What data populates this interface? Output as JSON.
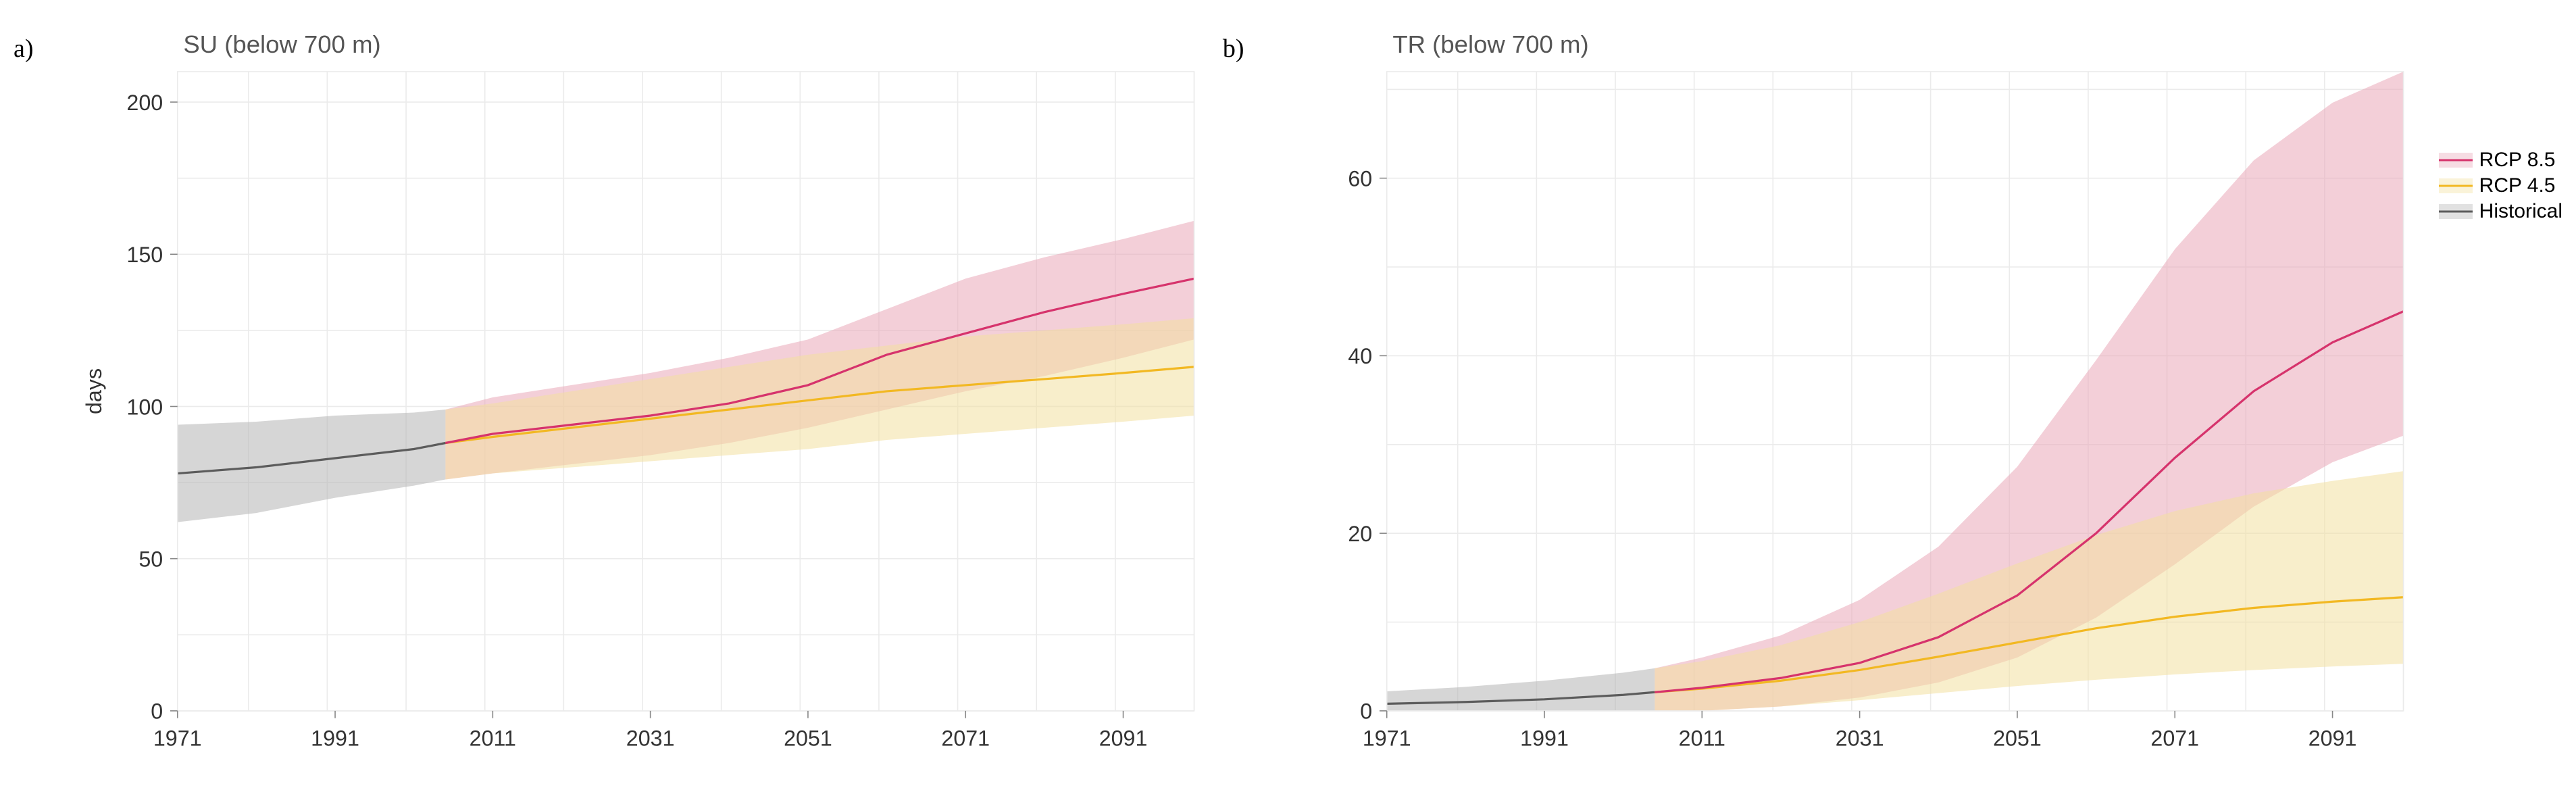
{
  "background_color": "#ffffff",
  "plot_background": "#ffffff",
  "grid_color": "#ebebeb",
  "axis_text_color": "#333333",
  "title_color": "#555555",
  "font_family": "Arial, Helvetica, sans-serif",
  "title_fontsize": 34,
  "tick_fontsize": 30,
  "axis_label_fontsize": 30,
  "panel_label_fontsize": 38,
  "line_width": 3,
  "series_colors": {
    "historical_line": "#5c5c5c",
    "historical_band": "#b5b5b5",
    "rcp45_line": "#f2b822",
    "rcp45_band": "#f3e0a0",
    "rcp85_line": "#d6336c",
    "rcp85_band": "#e9a8b8"
  },
  "band_opacity": 0.55,
  "legend": {
    "items": [
      {
        "key": "rcp85",
        "label": "RCP 8.5"
      },
      {
        "key": "rcp45",
        "label": "RCP 4.5"
      },
      {
        "key": "historical",
        "label": "Historical"
      }
    ]
  },
  "panels": {
    "a": {
      "label": "a)",
      "title": "SU (below 700 m)",
      "ylabel": "days",
      "xlim": [
        1971,
        2100
      ],
      "ylim": [
        0,
        210
      ],
      "xticks": [
        1971,
        1991,
        2011,
        2031,
        2051,
        2071,
        2091
      ],
      "yticks": [
        0,
        50,
        100,
        150,
        200
      ],
      "xgrid_step": 10,
      "ygrid_step": 25,
      "series": {
        "historical": {
          "x": [
            1971,
            1981,
            1991,
            2001,
            2005
          ],
          "mean": [
            78,
            80,
            83,
            86,
            88
          ],
          "lo": [
            62,
            65,
            70,
            74,
            76
          ],
          "hi": [
            94,
            95,
            97,
            98,
            99
          ]
        },
        "rcp45": {
          "x": [
            2005,
            2011,
            2021,
            2031,
            2041,
            2051,
            2061,
            2071,
            2081,
            2091,
            2100
          ],
          "mean": [
            88,
            90,
            93,
            96,
            99,
            102,
            105,
            107,
            109,
            111,
            113
          ],
          "lo": [
            76,
            78,
            80,
            82,
            84,
            86,
            89,
            91,
            93,
            95,
            97
          ],
          "hi": [
            99,
            101,
            105,
            109,
            113,
            117,
            120,
            123,
            125,
            127,
            129
          ]
        },
        "rcp85": {
          "x": [
            2005,
            2011,
            2021,
            2031,
            2041,
            2051,
            2061,
            2071,
            2081,
            2091,
            2100
          ],
          "mean": [
            88,
            91,
            94,
            97,
            101,
            107,
            117,
            124,
            131,
            137,
            142
          ],
          "lo": [
            76,
            78,
            81,
            84,
            88,
            93,
            99,
            105,
            110,
            116,
            122
          ],
          "hi": [
            99,
            103,
            107,
            111,
            116,
            122,
            132,
            142,
            149,
            155,
            161
          ]
        }
      }
    },
    "b": {
      "label": "b)",
      "title": "TR (below 700 m)",
      "ylabel": "",
      "xlim": [
        1971,
        2100
      ],
      "ylim": [
        0,
        72
      ],
      "xticks": [
        1971,
        1991,
        2011,
        2031,
        2051,
        2071,
        2091
      ],
      "yticks": [
        0,
        20,
        40,
        60
      ],
      "xgrid_step": 10,
      "ygrid_step": 10,
      "series": {
        "historical": {
          "x": [
            1971,
            1981,
            1991,
            2001,
            2005
          ],
          "mean": [
            0.8,
            1.0,
            1.3,
            1.8,
            2.1
          ],
          "lo": [
            0,
            0,
            0,
            0,
            0
          ],
          "hi": [
            2.2,
            2.7,
            3.4,
            4.3,
            4.8
          ]
        },
        "rcp45": {
          "x": [
            2005,
            2011,
            2021,
            2031,
            2041,
            2051,
            2061,
            2071,
            2081,
            2091,
            2100
          ],
          "mean": [
            2.1,
            2.5,
            3.4,
            4.6,
            6.1,
            7.7,
            9.3,
            10.6,
            11.6,
            12.3,
            12.8
          ],
          "lo": [
            0,
            0,
            0.5,
            1.2,
            2.0,
            2.8,
            3.5,
            4.1,
            4.6,
            5.0,
            5.3
          ],
          "hi": [
            4.8,
            5.6,
            7.4,
            10.0,
            13.2,
            16.6,
            19.8,
            22.5,
            24.5,
            25.9,
            27.0
          ]
        },
        "rcp85": {
          "x": [
            2005,
            2011,
            2021,
            2031,
            2041,
            2051,
            2061,
            2071,
            2081,
            2091,
            2100
          ],
          "mean": [
            2.1,
            2.6,
            3.7,
            5.4,
            8.3,
            13.0,
            20.0,
            28.5,
            36.0,
            41.5,
            45.0
          ],
          "lo": [
            0,
            0,
            0.5,
            1.5,
            3.2,
            6.0,
            10.5,
            16.5,
            23.0,
            28.0,
            31.0
          ],
          "hi": [
            4.8,
            6.0,
            8.5,
            12.5,
            18.5,
            27.5,
            39.5,
            52.0,
            62.0,
            68.5,
            72.0
          ]
        }
      }
    }
  }
}
